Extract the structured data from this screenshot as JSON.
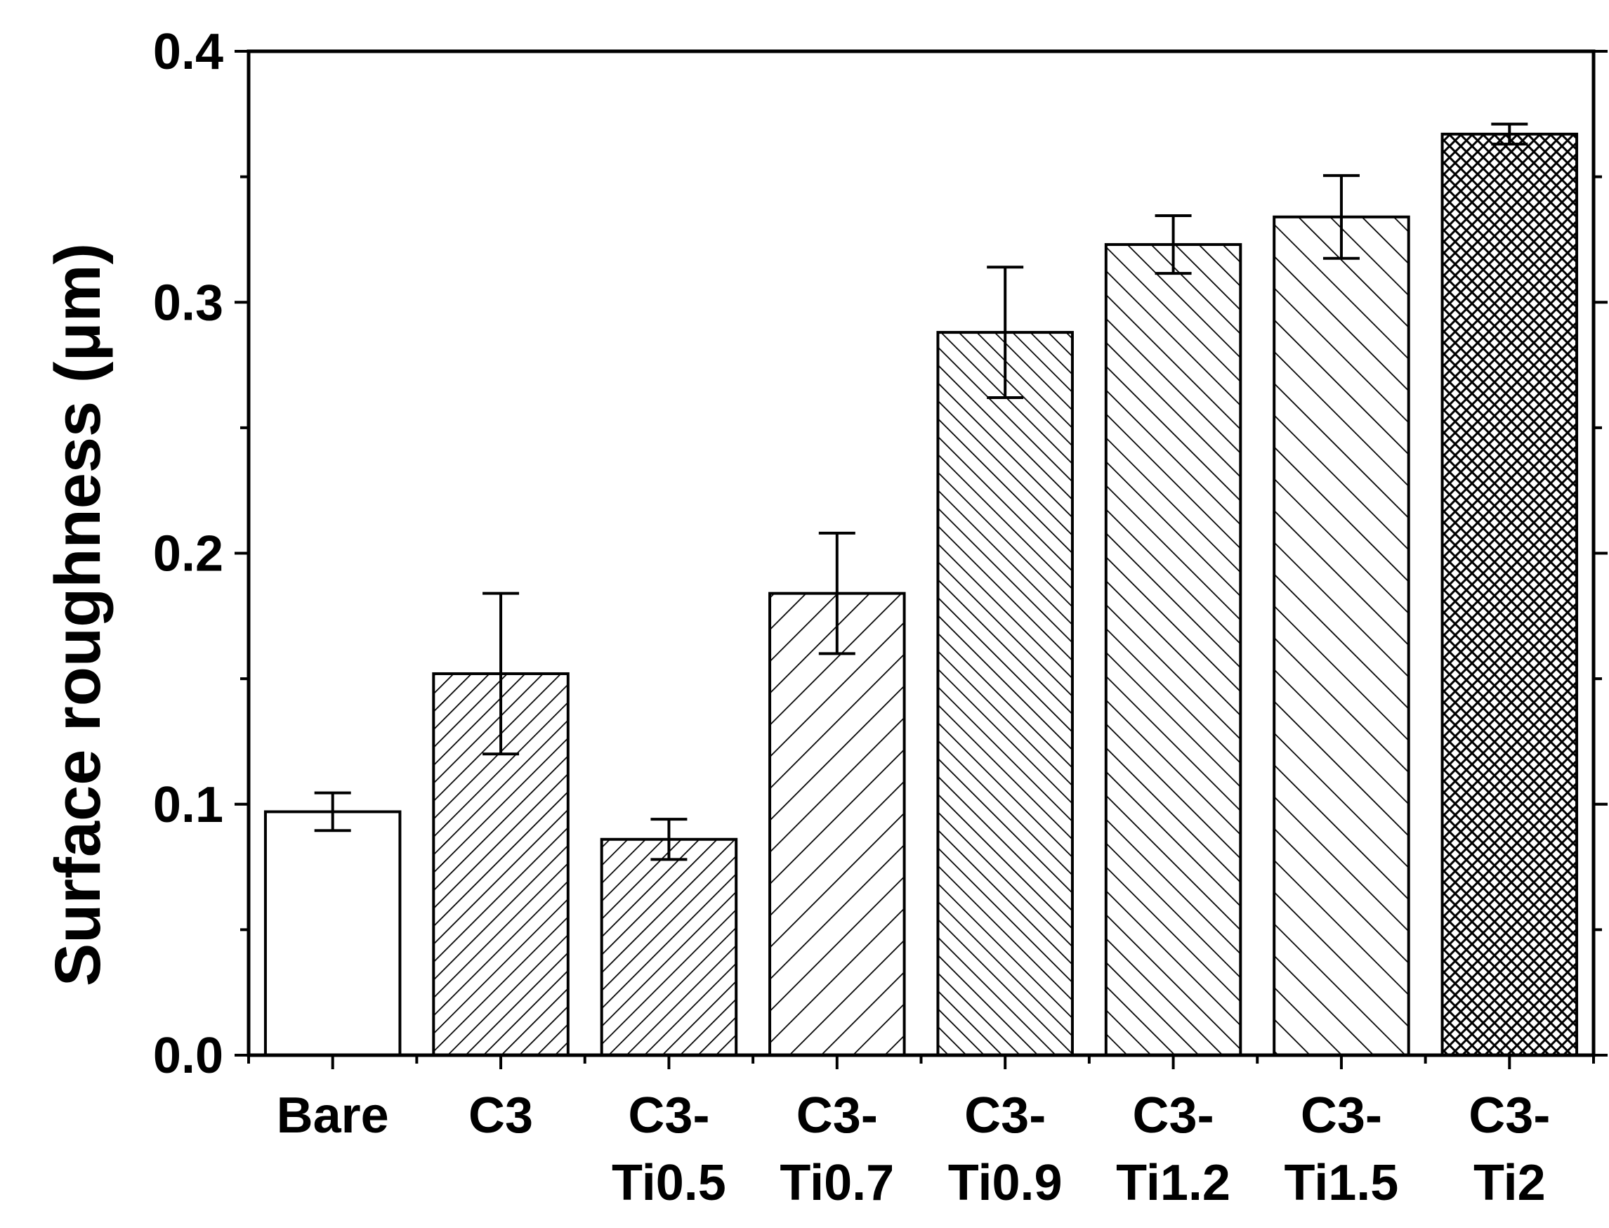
{
  "chart_data": {
    "type": "bar",
    "title": "",
    "xlabel": "",
    "ylabel": "Surface roughness (μm)",
    "ylim": [
      0.0,
      0.4
    ],
    "yticks": [
      "0.0",
      "0.1",
      "0.2",
      "0.3",
      "0.4"
    ],
    "grid": false,
    "categories": [
      [
        "Bare"
      ],
      [
        "C3"
      ],
      [
        "C3-",
        "Ti0.5"
      ],
      [
        "C3-",
        "Ti0.7"
      ],
      [
        "C3-",
        "Ti0.9"
      ],
      [
        "C3-",
        "Ti1.2"
      ],
      [
        "C3-",
        "Ti1.5"
      ],
      [
        "C3-",
        "Ti2"
      ]
    ],
    "values": [
      0.097,
      0.152,
      0.086,
      0.184,
      0.288,
      0.323,
      0.334,
      0.367
    ],
    "errors": [
      0.0075,
      0.032,
      0.008,
      0.024,
      0.026,
      0.0115,
      0.0165,
      0.004
    ],
    "patterns": [
      "none",
      "diag-dense",
      "diag-dense",
      "diag-sparse",
      "back-dense",
      "back-medium",
      "back-sparse",
      "crosshatch"
    ],
    "colors": {
      "stroke": "#000000",
      "fill": "#ffffff"
    }
  }
}
